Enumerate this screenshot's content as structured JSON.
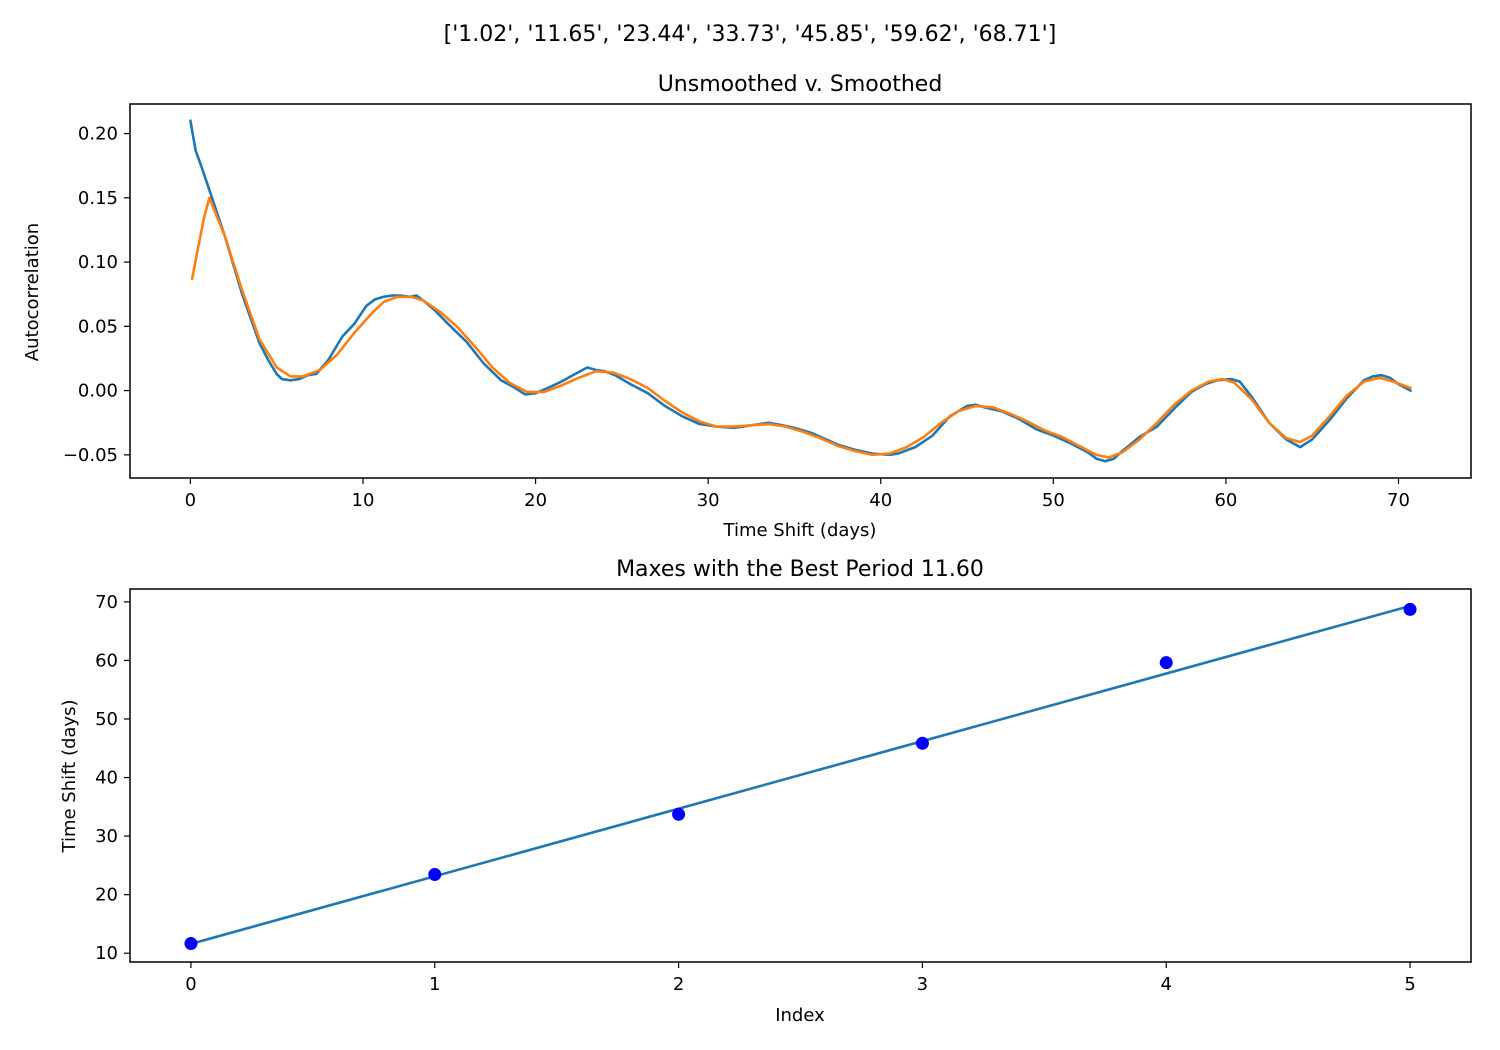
{
  "figure": {
    "suptitle": "['1.02', '11.65', '23.44', '33.73', '45.85', '59.62', '68.71']"
  },
  "colors": {
    "unsmoothed": "#1f77b4",
    "smoothed": "#ff7f0e",
    "fit_line": "#1f77b4",
    "maxes_points": "#0000ff",
    "axes_edge": "#000000",
    "background": "#ffffff"
  },
  "chart_data": [
    {
      "type": "line",
      "title": "Unsmoothed v. Smoothed",
      "xlabel": "Time Shift (days)",
      "ylabel": "Autocorrelation",
      "xlim": [
        -3.5,
        74.2
      ],
      "ylim": [
        -0.068,
        0.223
      ],
      "xticks": [
        0,
        10,
        20,
        30,
        40,
        50,
        60,
        70
      ],
      "xtick_labels": [
        "0",
        "10",
        "20",
        "30",
        "40",
        "50",
        "60",
        "70"
      ],
      "yticks": [
        -0.05,
        0.0,
        0.05,
        0.1,
        0.15,
        0.2
      ],
      "ytick_labels": [
        "−0.05",
        "0.00",
        "0.05",
        "0.10",
        "0.15",
        "0.20"
      ],
      "grid": false,
      "series": [
        {
          "color_key": "unsmoothed",
          "x": [
            0,
            0.3,
            0.7,
            1.0,
            1.3,
            2.0,
            3.0,
            4.0,
            4.5,
            5.0,
            5.3,
            5.8,
            6.3,
            6.8,
            7.3,
            8.0,
            8.8,
            9.5,
            10.2,
            10.7,
            11.2,
            11.7,
            12.2,
            12.7,
            13.1,
            13.5,
            14.2,
            15.0,
            16.0,
            17.0,
            18.0,
            18.7,
            19.4,
            20.0,
            20.7,
            21.5,
            22.3,
            23.0,
            23.5,
            24.0,
            24.6,
            25.5,
            26.5,
            27.5,
            28.5,
            29.5,
            30.5,
            31.5,
            32.5,
            33.5,
            34.3,
            35.0,
            36.0,
            37.5,
            38.5,
            39.5,
            40.5,
            41.0,
            42.0,
            43.0,
            44.0,
            45.0,
            45.5,
            46.0,
            47.0,
            48.0,
            49.0,
            50.0,
            51.0,
            52.0,
            52.5,
            53.0,
            53.5,
            54.0,
            55.0,
            56.0,
            57.0,
            58.0,
            58.8,
            59.5,
            60.3,
            60.8,
            61.5,
            62.5,
            63.5,
            64.3,
            65.0,
            66.0,
            67.0,
            68.0,
            68.5,
            69.0,
            69.5,
            70.0,
            70.7
          ],
          "y": [
            0.21,
            0.187,
            0.172,
            0.16,
            0.148,
            0.12,
            0.075,
            0.037,
            0.024,
            0.013,
            0.009,
            0.008,
            0.009,
            0.012,
            0.013,
            0.024,
            0.042,
            0.052,
            0.066,
            0.071,
            0.073,
            0.074,
            0.074,
            0.073,
            0.074,
            0.07,
            0.062,
            0.051,
            0.038,
            0.021,
            0.008,
            0.003,
            -0.003,
            -0.002,
            0.002,
            0.007,
            0.013,
            0.018,
            0.016,
            0.015,
            0.012,
            0.005,
            -0.002,
            -0.012,
            -0.02,
            -0.026,
            -0.028,
            -0.029,
            -0.027,
            -0.025,
            -0.027,
            -0.029,
            -0.033,
            -0.042,
            -0.046,
            -0.049,
            -0.05,
            -0.049,
            -0.044,
            -0.035,
            -0.02,
            -0.012,
            -0.011,
            -0.013,
            -0.016,
            -0.022,
            -0.03,
            -0.035,
            -0.041,
            -0.048,
            -0.053,
            -0.055,
            -0.053,
            -0.047,
            -0.036,
            -0.028,
            -0.014,
            -0.001,
            0.005,
            0.008,
            0.009,
            0.007,
            -0.005,
            -0.025,
            -0.038,
            -0.044,
            -0.038,
            -0.023,
            -0.006,
            0.008,
            0.011,
            0.012,
            0.01,
            0.005,
            0.0
          ]
        },
        {
          "color_key": "smoothed",
          "x": [
            0.1,
            0.4,
            0.8,
            1.1,
            2.0,
            3.0,
            4.0,
            5.0,
            5.8,
            6.5,
            7.5,
            8.5,
            9.5,
            10.5,
            11.2,
            12.0,
            12.8,
            13.5,
            14.5,
            15.5,
            16.5,
            17.5,
            18.5,
            19.5,
            20.5,
            21.5,
            22.5,
            23.5,
            24.5,
            25.5,
            26.5,
            27.5,
            28.5,
            29.5,
            30.5,
            31.5,
            32.5,
            33.5,
            34.5,
            35.5,
            36.5,
            37.5,
            38.5,
            39.5,
            40.5,
            41.5,
            42.5,
            43.5,
            44.5,
            45.5,
            46.5,
            47.5,
            48.5,
            49.5,
            50.5,
            51.5,
            52.5,
            53.2,
            54.0,
            55.0,
            56.0,
            57.0,
            58.0,
            59.0,
            59.8,
            60.5,
            61.5,
            62.5,
            63.5,
            64.3,
            65.0,
            66.0,
            67.0,
            68.0,
            68.9,
            69.7,
            70.7
          ],
          "y": [
            0.087,
            0.108,
            0.135,
            0.15,
            0.12,
            0.078,
            0.04,
            0.018,
            0.011,
            0.011,
            0.016,
            0.028,
            0.045,
            0.06,
            0.069,
            0.073,
            0.073,
            0.07,
            0.061,
            0.049,
            0.034,
            0.018,
            0.006,
            -0.001,
            -0.001,
            0.004,
            0.01,
            0.015,
            0.014,
            0.009,
            0.002,
            -0.008,
            -0.017,
            -0.024,
            -0.028,
            -0.028,
            -0.027,
            -0.026,
            -0.028,
            -0.032,
            -0.037,
            -0.043,
            -0.047,
            -0.05,
            -0.049,
            -0.044,
            -0.036,
            -0.025,
            -0.016,
            -0.012,
            -0.013,
            -0.018,
            -0.024,
            -0.031,
            -0.036,
            -0.043,
            -0.05,
            -0.052,
            -0.048,
            -0.038,
            -0.025,
            -0.011,
            0.0,
            0.007,
            0.009,
            0.006,
            -0.007,
            -0.025,
            -0.037,
            -0.04,
            -0.035,
            -0.02,
            -0.004,
            0.007,
            0.01,
            0.007,
            0.002
          ]
        }
      ]
    },
    {
      "type": "scatter",
      "title": "Maxes with the Best Period 11.60",
      "xlabel": "Index",
      "ylabel": "Time Shift (days)",
      "xlim": [
        -0.25,
        5.25
      ],
      "ylim": [
        8.5,
        72.2
      ],
      "xticks": [
        0,
        1,
        2,
        3,
        4,
        5
      ],
      "xtick_labels": [
        "0",
        "1",
        "2",
        "3",
        "4",
        "5"
      ],
      "yticks": [
        10,
        20,
        30,
        40,
        50,
        60,
        70
      ],
      "ytick_labels": [
        "10",
        "20",
        "30",
        "40",
        "50",
        "60",
        "70"
      ],
      "grid": false,
      "points": {
        "color_key": "maxes_points",
        "x": [
          0,
          1,
          2,
          3,
          4,
          5
        ],
        "y": [
          11.65,
          23.44,
          33.73,
          45.85,
          59.62,
          68.71
        ]
      },
      "fit_line": {
        "color_key": "fit_line",
        "x": [
          0,
          5
        ],
        "y": [
          11.6,
          69.3
        ]
      }
    }
  ]
}
